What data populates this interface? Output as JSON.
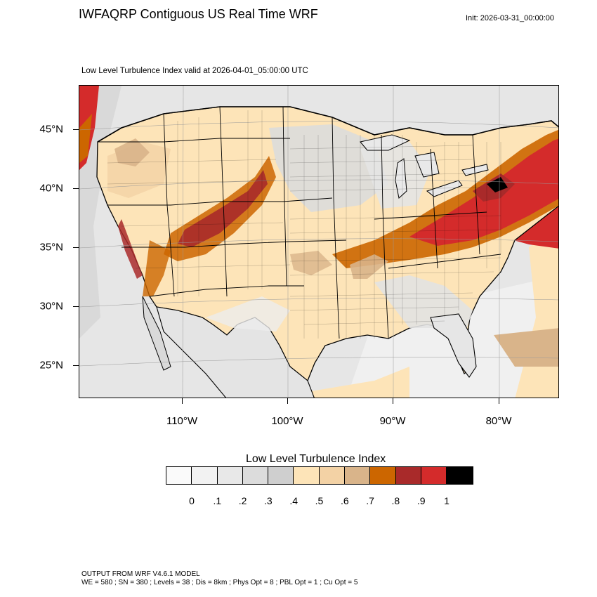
{
  "header": {
    "title": "IWFAQRP Contiguous US Real Time WRF",
    "init": "Init: 2026-03-31_00:00:00"
  },
  "subtitle": "Low Level Turbulence Index valid at 2026-04-01_05:00:00 UTC",
  "axes": {
    "lat_labels": [
      "45°N",
      "40°N",
      "35°N",
      "30°N",
      "25°N"
    ],
    "lon_labels": [
      "110°W",
      "100°W",
      "90°W",
      "80°W"
    ]
  },
  "legend": {
    "title": "Low Level Turbulence Index",
    "labels": [
      "0",
      ".1",
      ".2",
      ".3",
      ".4",
      ".5",
      ".6",
      ".7",
      ".8",
      ".9",
      "1"
    ],
    "colors": [
      "#fafafa",
      "#f2f2f2",
      "#e8e8e8",
      "#dcdcdc",
      "#cfcfcf",
      "#fde4b8",
      "#f3d2a5",
      "#d9b48a",
      "#cc6600",
      "#a92a2a",
      "#d42b2b",
      "#000000"
    ]
  },
  "footer": {
    "line1": "OUTPUT FROM WRF V4.6.1 MODEL",
    "line2": "WE = 580 ; SN = 380 ; Levels = 38 ; Dis = 8km ; Phys Opt = 8 ; PBL Opt = 1 ; Cu Opt = 5"
  },
  "map": {
    "ocean_color": "#e9e9e9",
    "land_low_color": "#fde4b8",
    "boundary_color": "#000000"
  }
}
